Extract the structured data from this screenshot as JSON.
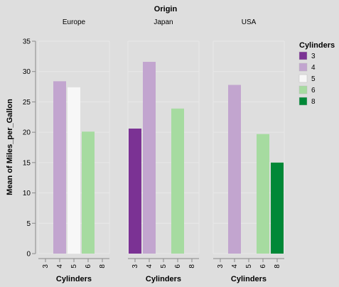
{
  "chart_data": {
    "type": "bar",
    "title": "Origin",
    "ylabel": "Mean of Miles_per_Gallon",
    "xlabel": "Cylinders",
    "ylim": [
      0,
      35
    ],
    "yticks": [
      "0",
      "5",
      "10",
      "15",
      "20",
      "25",
      "30",
      "35"
    ],
    "categories": [
      "3",
      "4",
      "5",
      "6",
      "8"
    ],
    "facets": [
      {
        "name": "Europe",
        "values": [
          null,
          28.4,
          27.4,
          20.1,
          null
        ]
      },
      {
        "name": "Japan",
        "values": [
          20.6,
          31.6,
          null,
          23.9,
          null
        ]
      },
      {
        "name": "USA",
        "values": [
          null,
          27.8,
          null,
          19.7,
          15.0
        ]
      }
    ],
    "grid": true,
    "legend": {
      "title": "Cylinders",
      "position": "right",
      "items": [
        "3",
        "4",
        "5",
        "6",
        "8"
      ]
    },
    "colors": {
      "3": "#7b3294",
      "4": "#c2a5cf",
      "5": "#f7f7f7",
      "6": "#a6dba0",
      "8": "#008837"
    }
  }
}
